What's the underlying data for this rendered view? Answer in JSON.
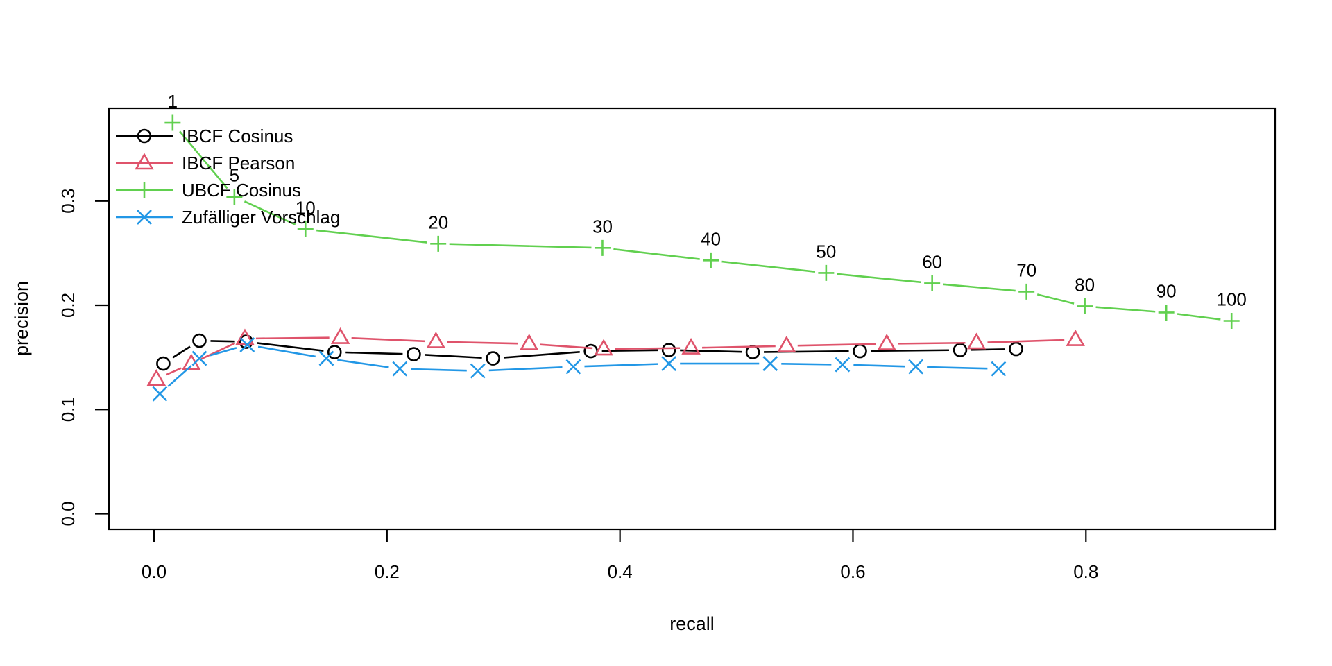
{
  "figure": {
    "background": "#ffffff",
    "xlabel": "recall",
    "ylabel": "precision"
  },
  "chart_data": {
    "type": "line",
    "title": "",
    "xlabel": "recall",
    "ylabel": "precision",
    "grid": false,
    "legend_position": "top-left",
    "xlim": [
      -0.0387,
      0.9624
    ],
    "ylim": [
      -0.015,
      0.389
    ],
    "x_ticks": {
      "values": [
        0.0,
        0.2,
        0.4,
        0.6,
        0.8
      ],
      "labels": [
        "0.0",
        "0.2",
        "0.4",
        "0.6",
        "0.8"
      ]
    },
    "y_ticks": {
      "values": [
        0.0,
        0.1,
        0.2,
        0.3
      ],
      "labels": [
        "0.0",
        "0.1",
        "0.2",
        "0.3"
      ]
    },
    "n_values": [
      1,
      5,
      10,
      20,
      30,
      40,
      50,
      60,
      70,
      80,
      90,
      100
    ],
    "series": [
      {
        "name": "IBCF Cosinus",
        "color": "#000000",
        "marker": "circle",
        "labeled": false,
        "recall": [
          0.008,
          0.039,
          0.079,
          0.155,
          0.223,
          0.291,
          0.375,
          0.442,
          0.514,
          0.606,
          0.692,
          0.74
        ],
        "precision": [
          0.144,
          0.166,
          0.165,
          0.155,
          0.153,
          0.149,
          0.156,
          0.157,
          0.155,
          0.156,
          0.157,
          0.158
        ]
      },
      {
        "name": "IBCF Pearson",
        "color": "#DF536B",
        "marker": "triangle",
        "labeled": false,
        "recall": [
          0.002,
          0.032,
          0.078,
          0.16,
          0.242,
          0.322,
          0.386,
          0.461,
          0.543,
          0.629,
          0.706,
          0.791
        ],
        "precision": [
          0.129,
          0.144,
          0.168,
          0.169,
          0.165,
          0.163,
          0.158,
          0.159,
          0.161,
          0.163,
          0.164,
          0.167
        ]
      },
      {
        "name": "UBCF Cosinus",
        "color": "#61D04F",
        "marker": "plus",
        "labeled": true,
        "recall": [
          0.016,
          0.069,
          0.13,
          0.244,
          0.385,
          0.478,
          0.577,
          0.668,
          0.749,
          0.799,
          0.869,
          0.925
        ],
        "precision": [
          0.375,
          0.304,
          0.273,
          0.259,
          0.255,
          0.243,
          0.231,
          0.221,
          0.213,
          0.199,
          0.193,
          0.185
        ]
      },
      {
        "name": "Zufälliger Vorschlag",
        "color": "#2297E6",
        "marker": "cross",
        "labeled": false,
        "recall": [
          0.005,
          0.039,
          0.08,
          0.148,
          0.211,
          0.278,
          0.36,
          0.442,
          0.529,
          0.591,
          0.654,
          0.725
        ],
        "precision": [
          0.115,
          0.149,
          0.162,
          0.149,
          0.139,
          0.137,
          0.141,
          0.144,
          0.144,
          0.143,
          0.141,
          0.139
        ]
      }
    ]
  }
}
